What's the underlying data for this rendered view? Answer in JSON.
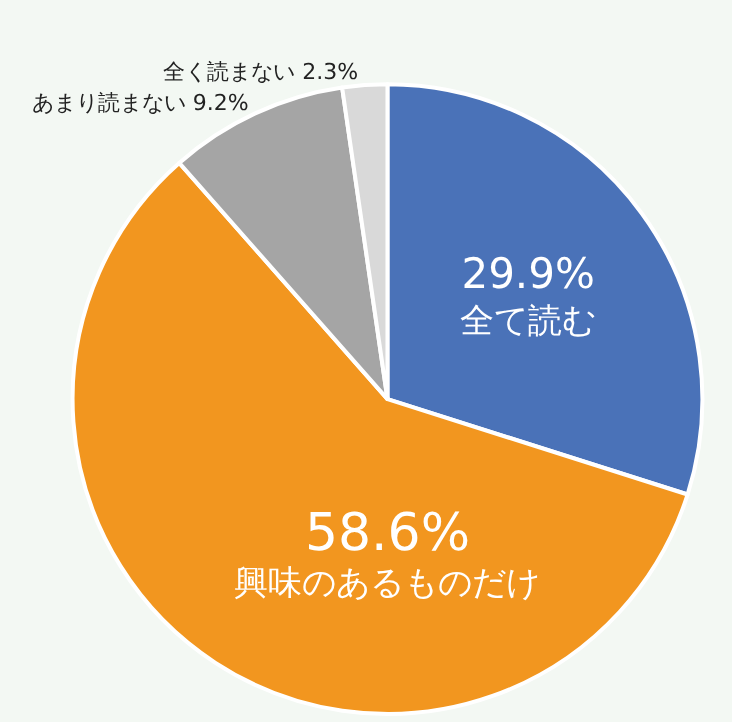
{
  "chart_data": {
    "type": "pie",
    "categories": [
      "全て読む",
      "興味のあるものだけ",
      "あまり読まない",
      "全く読まない"
    ],
    "values": [
      29.9,
      58.6,
      9.2,
      2.3
    ],
    "value_labels": [
      "29.9%",
      "58.6%",
      "9.2%",
      "2.3%"
    ],
    "colors": [
      "#4a72b8",
      "#f2961f",
      "#a5a5a5",
      "#d9d9d9"
    ],
    "legend": false
  }
}
